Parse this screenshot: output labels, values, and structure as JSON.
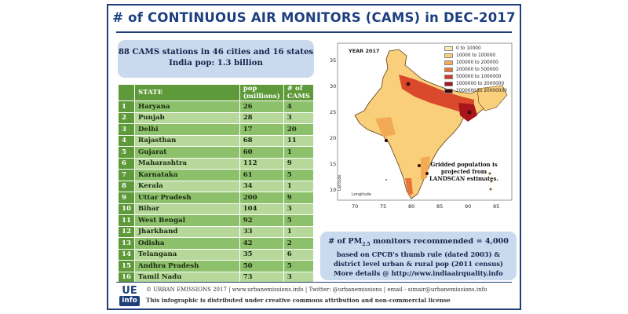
{
  "title": "# of CONTINUOUS AIR MONITORS (CAMS) in DEC-2017",
  "summary": {
    "line1": "88 CAMS stations in 46 cities and 16 states",
    "line2": "India pop: 1.3 billion"
  },
  "table": {
    "headers": [
      "",
      "STATE",
      "pop (millions)",
      "# of CAMS"
    ],
    "rows": [
      {
        "n": "1",
        "state": "Haryana",
        "pop": "26",
        "cams": "4"
      },
      {
        "n": "2",
        "state": "Punjab",
        "pop": "28",
        "cams": "3"
      },
      {
        "n": "3",
        "state": "Delhi",
        "pop": "17",
        "cams": "20"
      },
      {
        "n": "4",
        "state": "Rajasthan",
        "pop": "68",
        "cams": "11"
      },
      {
        "n": "5",
        "state": "Gujarat",
        "pop": "60",
        "cams": "1"
      },
      {
        "n": "6",
        "state": "Maharashtra",
        "pop": "112",
        "cams": "9"
      },
      {
        "n": "7",
        "state": "Karnataka",
        "pop": "61",
        "cams": "5"
      },
      {
        "n": "8",
        "state": "Kerala",
        "pop": "34",
        "cams": "1"
      },
      {
        "n": "9",
        "state": "Uttar Pradesh",
        "pop": "200",
        "cams": "9"
      },
      {
        "n": "10",
        "state": "Bihar",
        "pop": "104",
        "cams": "3"
      },
      {
        "n": "11",
        "state": "West Bengal",
        "pop": "92",
        "cams": "5"
      },
      {
        "n": "12",
        "state": "Jharkhand",
        "pop": "33",
        "cams": "1"
      },
      {
        "n": "13",
        "state": "Odisha",
        "pop": "42",
        "cams": "2"
      },
      {
        "n": "14",
        "state": "Telangana",
        "pop": "35",
        "cams": "6"
      },
      {
        "n": "15",
        "state": "Andhra Pradesh",
        "pop": "50",
        "cams": "5"
      },
      {
        "n": "16",
        "state": "Tamil Nadu",
        "pop": "73",
        "cams": "3"
      }
    ]
  },
  "map": {
    "year_label": "YEAR 2017",
    "legend": [
      {
        "label": "0 to 10000",
        "color": "#fde9b5"
      },
      {
        "label": "10000 to 100000",
        "color": "#f9cf7c"
      },
      {
        "label": "100000 to 200000",
        "color": "#f3aa54"
      },
      {
        "label": "200000 to 500000",
        "color": "#e9743a"
      },
      {
        "label": "500000 to 1000000",
        "color": "#d63a24"
      },
      {
        "label": "1000000 to 2000000",
        "color": "#a8151a"
      },
      {
        "label": "2000000 to 20000000",
        "color": "#3a0a0a"
      }
    ],
    "note_line1": "Gridded population is",
    "note_line2": "projected from",
    "note_line3": "LANDSCAN estimates.",
    "lat_label": "Latitude",
    "lon_label": "Longitude",
    "y_ticks": [
      "35",
      "30",
      "25",
      "20",
      "15",
      "10"
    ],
    "x_ticks": [
      "70",
      "75",
      "80",
      "85",
      "90",
      "95"
    ]
  },
  "recommendation": {
    "line1_pre": "# of PM",
    "line1_sub": "2.5",
    "line1_post": " monitors recommended = 4,000",
    "line2": "based on CPCB's thumb rule (dated 2003) &",
    "line3": "district level urban & rural pop (2011 census)",
    "line4": "More details @ http://www.indiaairquality.info"
  },
  "logo": {
    "top": "UE",
    "bottom": "info"
  },
  "footer": {
    "line1": "© URBAN EMISSIONS 2017 | www.urbanemissions.info | Twitter: @urbanemissions | email - simair@urbanemissions.info",
    "line2": "This infographic is distributed under creative commons attribution and non-commercial license"
  }
}
